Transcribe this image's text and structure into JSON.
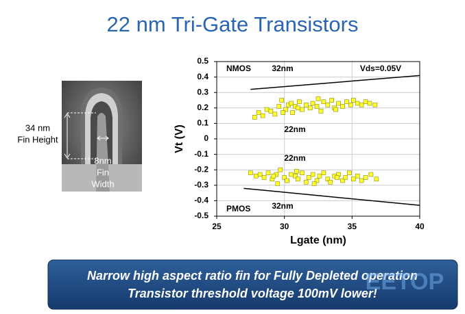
{
  "title": "22 nm Tri-Gate Transistors",
  "figure": {
    "fin_height": [
      "34 nm",
      "Fin Height"
    ],
    "fin_width": [
      "8nm",
      "Fin",
      "Width"
    ]
  },
  "chart_data": {
    "type": "scatter",
    "xlabel": "Lgate (nm)",
    "ylabel": "Vt (V)",
    "xlim": [
      25,
      40
    ],
    "xticks": [
      25,
      30,
      35,
      40
    ],
    "ylim": [
      -0.5,
      0.5
    ],
    "yticks": [
      0.5,
      0.4,
      0.3,
      0.2,
      0.1,
      0,
      -0.1,
      -0.2,
      -0.3,
      -0.4,
      -0.5
    ],
    "grid": true,
    "annotations": [
      "NMOS",
      "32nm",
      "Vds=0.05V",
      "22nm",
      "22nm",
      "PMOS",
      "32nm"
    ],
    "series": [
      {
        "type": "scatter",
        "color": "#ffff33",
        "x": [
          27.8,
          28.1,
          28.4,
          28.7,
          29.0,
          29.3,
          29.6,
          29.8,
          30.1,
          30.3,
          30.6,
          30.8,
          31.1,
          31.3,
          31.6,
          31.9,
          32.1,
          32.4,
          32.7,
          32.9,
          33.2,
          33.5,
          33.7,
          34.0,
          34.3,
          34.6,
          34.9,
          35.1,
          35.4,
          35.7,
          36.0,
          36.3,
          36.7,
          29.9,
          31.0,
          32.5,
          33.8,
          30.5
        ],
        "values": [
          0.14,
          0.17,
          0.15,
          0.19,
          0.18,
          0.16,
          0.21,
          0.25,
          0.19,
          0.22,
          0.17,
          0.21,
          0.24,
          0.19,
          0.22,
          0.2,
          0.23,
          0.21,
          0.18,
          0.24,
          0.22,
          0.25,
          0.2,
          0.23,
          0.21,
          0.24,
          0.22,
          0.25,
          0.23,
          0.22,
          0.24,
          0.23,
          0.22,
          0.17,
          0.2,
          0.26,
          0.19,
          0.23
        ]
      },
      {
        "type": "scatter",
        "color": "#ffff33",
        "x": [
          27.5,
          27.9,
          28.2,
          28.5,
          28.8,
          29.1,
          29.4,
          29.7,
          30.0,
          30.2,
          30.5,
          30.8,
          31.0,
          31.3,
          31.6,
          31.8,
          32.1,
          32.4,
          32.6,
          32.9,
          33.2,
          33.4,
          33.7,
          34.0,
          34.3,
          34.5,
          34.8,
          35.1,
          35.4,
          35.7,
          36.0,
          36.4,
          36.8,
          29.5,
          30.9,
          32.2,
          33.9,
          29.2
        ],
        "values": [
          -0.22,
          -0.24,
          -0.23,
          -0.25,
          -0.22,
          -0.26,
          -0.23,
          -0.2,
          -0.25,
          -0.27,
          -0.23,
          -0.24,
          -0.26,
          -0.22,
          -0.28,
          -0.25,
          -0.23,
          -0.27,
          -0.24,
          -0.22,
          -0.26,
          -0.28,
          -0.24,
          -0.23,
          -0.27,
          -0.25,
          -0.22,
          -0.26,
          -0.24,
          -0.27,
          -0.25,
          -0.23,
          -0.26,
          -0.29,
          -0.21,
          -0.29,
          -0.25,
          -0.24
        ]
      },
      {
        "type": "line",
        "color": "#000000",
        "x": [
          27.5,
          40
        ],
        "values": [
          0.32,
          0.41
        ]
      },
      {
        "type": "line",
        "color": "#000000",
        "x": [
          27,
          40
        ],
        "values": [
          -0.32,
          -0.43
        ]
      }
    ]
  },
  "banner": {
    "lines": [
      "Narrow high aspect ratio fin for Fully Depleted operation",
      "Transistor threshold voltage 100mV lower!"
    ]
  },
  "watermark": "EETOP"
}
